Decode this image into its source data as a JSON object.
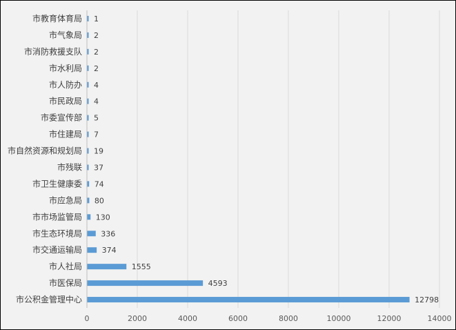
{
  "chart_data": {
    "type": "bar",
    "orientation": "horizontal",
    "categories": [
      "市教育体育局",
      "市气象局",
      "市消防救援支队",
      "市水利局",
      "市人防办",
      "市民政局",
      "市委宣传部",
      "市住建局",
      "市自然资源和规划局",
      "市残联",
      "市卫生健康委",
      "市应急局",
      "市市场监管局",
      "市生态环境局",
      "市交通运输局",
      "市人社局",
      "市医保局",
      "市公积金管理中心"
    ],
    "values": [
      1,
      2,
      2,
      2,
      4,
      4,
      5,
      7,
      19,
      37,
      74,
      80,
      130,
      336,
      374,
      1555,
      4593,
      12798
    ],
    "xlim": [
      0,
      14000
    ],
    "xticks": [
      "0",
      "2000",
      "4000",
      "6000",
      "8000",
      "10000",
      "12000",
      "14000"
    ],
    "grid": true,
    "data_labels": true,
    "legend": "none",
    "bar_color": "#5b9bd5",
    "background": "#f2f2f2"
  }
}
